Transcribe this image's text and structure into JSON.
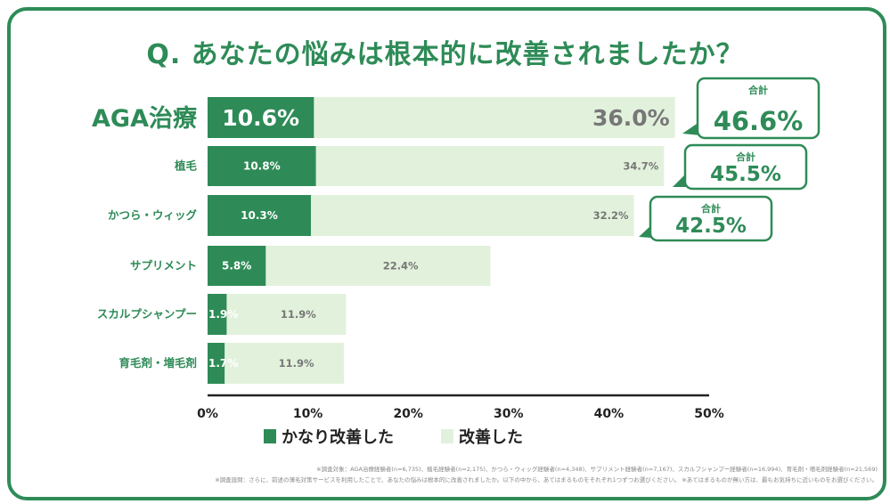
{
  "title": "Q. あなたの悩みは根本的に改善されましたか？",
  "colors": {
    "strong": "#2e8b57",
    "light": "#e2f1dc",
    "text_green": "#2e8b57",
    "text_gray": "#777777",
    "axis": "#222222"
  },
  "chart_data": {
    "type": "bar",
    "orientation": "horizontal",
    "stacked": true,
    "categories": [
      "AGA治療",
      "植毛",
      "かつら・ウィッグ",
      "サプリメント",
      "スカルプシャンプー",
      "育毛剤・増毛剤"
    ],
    "series": [
      {
        "name": "かなり改善した",
        "values": [
          10.6,
          10.8,
          10.3,
          5.8,
          1.9,
          1.7
        ]
      },
      {
        "name": "改善した",
        "values": [
          36.0,
          34.7,
          32.2,
          22.4,
          11.9,
          11.9
        ]
      }
    ],
    "totals": [
      {
        "category": "AGA治療",
        "label": "合計",
        "value": "46.6%"
      },
      {
        "category": "植毛",
        "label": "合計",
        "value": "45.5%"
      },
      {
        "category": "かつら・ウィッグ",
        "label": "合計",
        "value": "42.5%"
      }
    ],
    "value_labels": {
      "strong": [
        "10.6%",
        "10.8%",
        "10.3%",
        "5.8%",
        "1.9%",
        "1.7%"
      ],
      "light": [
        "36.0%",
        "34.7%",
        "32.2%",
        "22.4%",
        "11.9%",
        "11.9%"
      ]
    },
    "xlim": [
      0,
      50
    ],
    "xticks": [
      "0%",
      "10%",
      "20%",
      "30%",
      "40%",
      "50%"
    ],
    "xlabel": "",
    "ylabel": "",
    "grid": false,
    "legend_position": "bottom"
  },
  "notes": [
    "※調査対象：AGA治療経験者(n=6,735)、植毛経験者(n=2,175)、かつら・ウィッグ経験者(n=4,348)、サプリメント経験者(n=7,167)、スカルプシャンプー経験者(n=16,994)、育毛剤・増毛剤経験者(n=21,569)",
    "※調査設問：さらに、前述の薄毛対策サービスを利用したことで、あなたの悩みは根本的に改善されましたか。以下の中から、あてはまるものをそれぞれ1つずつお選びください。 ※あてはまるものが無い方は、最もお気持ちに近いものをお選びください。"
  ]
}
